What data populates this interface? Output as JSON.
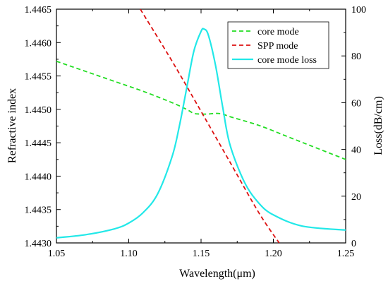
{
  "chart_data": {
    "type": "line",
    "xlabel": "Wavelength(μm)",
    "ylabel_left": "Refractive index",
    "ylabel_right": "Loss(dB/cm)",
    "xlim": [
      1.05,
      1.25
    ],
    "ylim_left": [
      1.443,
      1.4465
    ],
    "ylim_right": [
      0,
      100
    ],
    "x_ticks": [
      "1.05",
      "1.10",
      "1.15",
      "1.20",
      "1.25"
    ],
    "y_left_ticks": [
      "1.4430",
      "1.4435",
      "1.4440",
      "1.4445",
      "1.4450",
      "1.4455",
      "1.4460",
      "1.4465"
    ],
    "y_right_ticks": [
      "0",
      "20",
      "40",
      "60",
      "80",
      "100"
    ],
    "grid": false,
    "legend_position": "top-right",
    "series": [
      {
        "name": "core mode",
        "color": "#22dd22",
        "dash": "dashed",
        "axis": "left",
        "x": [
          1.05,
          1.07,
          1.09,
          1.11,
          1.13,
          1.14,
          1.145,
          1.15,
          1.155,
          1.16,
          1.165,
          1.17,
          1.19,
          1.21,
          1.23,
          1.25
        ],
        "y": [
          1.44572,
          1.44557,
          1.44542,
          1.44527,
          1.4451,
          1.445,
          1.44494,
          1.44493,
          1.44493,
          1.44494,
          1.44493,
          1.44489,
          1.44476,
          1.44459,
          1.44442,
          1.44425
        ]
      },
      {
        "name": "SPP mode",
        "color": "#dd1111",
        "dash": "dashed",
        "axis": "left",
        "x": [
          1.108,
          1.13,
          1.15,
          1.17,
          1.19,
          1.204
        ],
        "y": [
          1.4465,
          1.44572,
          1.44497,
          1.44421,
          1.44345,
          1.443
        ]
      },
      {
        "name": "core mode loss",
        "color": "#22e8e8",
        "dash": "solid",
        "axis": "right",
        "x": [
          1.05,
          1.07,
          1.09,
          1.1,
          1.11,
          1.12,
          1.13,
          1.135,
          1.14,
          1.145,
          1.15,
          1.152,
          1.155,
          1.16,
          1.165,
          1.17,
          1.18,
          1.19,
          1.2,
          1.22,
          1.25
        ],
        "y": [
          2.2,
          3.5,
          6.0,
          8.5,
          13.0,
          21.0,
          37.0,
          50.0,
          66.0,
          82.0,
          90.5,
          91.5,
          89.0,
          76.0,
          58.0,
          42.0,
          26.0,
          17.0,
          12.0,
          7.2,
          5.5
        ]
      }
    ]
  }
}
